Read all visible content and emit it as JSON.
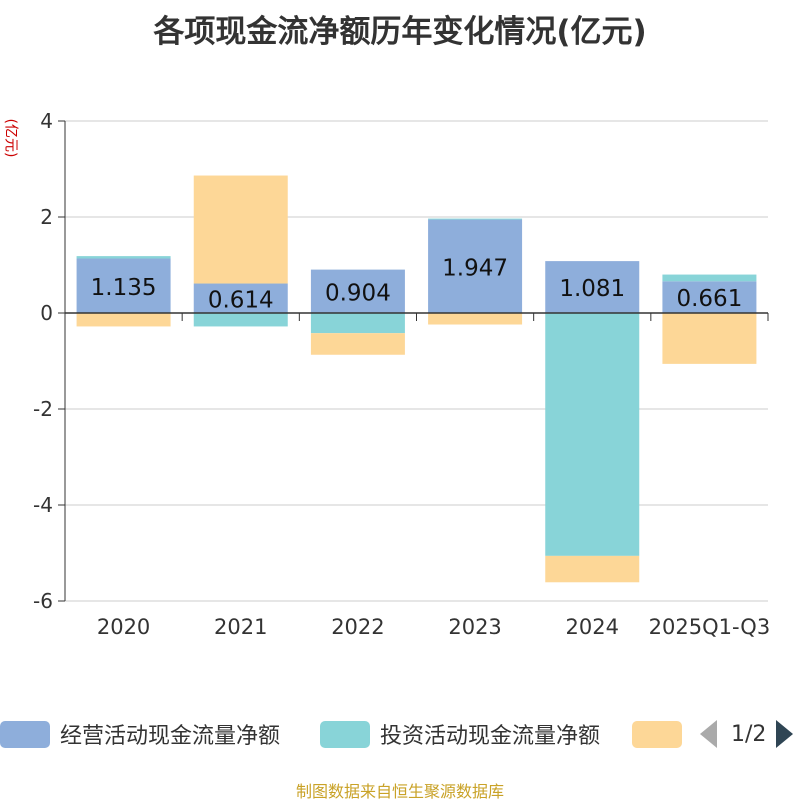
{
  "chart_data": {
    "type": "bar",
    "stacked": true,
    "title": "各项现金流净额历年变化情况(亿元)",
    "ylabel": "(亿元)",
    "categories": [
      "2020",
      "2021",
      "2022",
      "2023",
      "2024",
      "2025Q1-Q3"
    ],
    "ylim": [
      -6,
      4
    ],
    "yticks": [
      4,
      2,
      0,
      -2,
      -4,
      -6
    ],
    "yticks_labels": [
      "4",
      "2",
      "0",
      "-2",
      "-4",
      "-6"
    ],
    "grid": true,
    "series": [
      {
        "name": "经营活动现金流量净额",
        "color": "#8eaedb",
        "values": [
          1.135,
          0.614,
          0.904,
          1.947,
          1.081,
          0.661
        ],
        "labels": [
          "1.135",
          "0.614",
          "0.904",
          "1.947",
          "1.081",
          "0.661"
        ]
      },
      {
        "name": "投资活动现金流量净额",
        "color": "#88d4d8",
        "values": [
          0.05,
          -0.28,
          -0.42,
          0.02,
          -5.06,
          0.14
        ]
      },
      {
        "name": "",
        "color": "#fdd797",
        "values": [
          -0.28,
          2.25,
          -0.45,
          -0.24,
          -0.55,
          -1.06
        ]
      }
    ]
  },
  "legend": {
    "items": [
      {
        "label": "经营活动现金流量净额",
        "color": "#8eaedb"
      },
      {
        "label": "投资活动现金流量净额",
        "color": "#88d4d8"
      },
      {
        "label": "",
        "color": "#fdd797"
      }
    ],
    "page_text": "1/2"
  },
  "source": "制图数据来自恒生聚源数据库"
}
